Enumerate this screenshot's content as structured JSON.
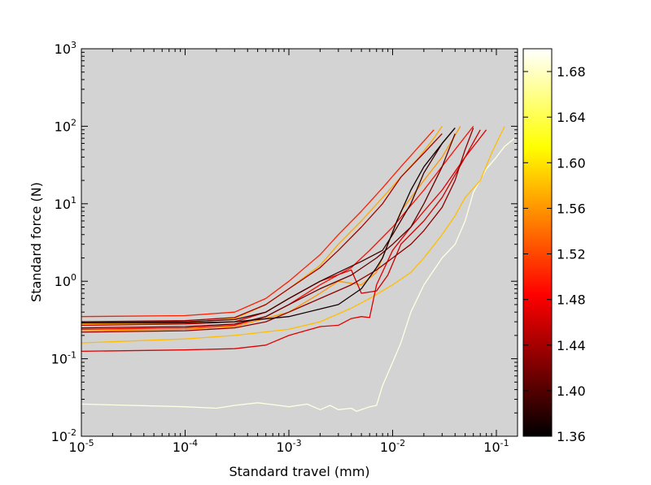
{
  "chart_data": {
    "type": "line",
    "title": "",
    "xlabel": "Standard travel (mm)",
    "ylabel": "Standard force (N)",
    "xscale": "log",
    "yscale": "log",
    "xlim": [
      1e-05,
      0.16
    ],
    "ylim": [
      0.01,
      1000
    ],
    "background": "#d3d3d3",
    "x_ticks": [
      {
        "value": 1e-05,
        "mant": "10",
        "exp": "-5"
      },
      {
        "value": 0.0001,
        "mant": "10",
        "exp": "-4"
      },
      {
        "value": 0.001,
        "mant": "10",
        "exp": "-3"
      },
      {
        "value": 0.01,
        "mant": "10",
        "exp": "-2"
      },
      {
        "value": 0.1,
        "mant": "10",
        "exp": "-1"
      }
    ],
    "y_ticks": [
      {
        "value": 0.01,
        "mant": "10",
        "exp": "-2"
      },
      {
        "value": 0.1,
        "mant": "10",
        "exp": "-1"
      },
      {
        "value": 1,
        "mant": "10",
        "exp": "0"
      },
      {
        "value": 10,
        "mant": "10",
        "exp": "1"
      },
      {
        "value": 100,
        "mant": "10",
        "exp": "2"
      },
      {
        "value": 1000,
        "mant": "10",
        "exp": "3"
      }
    ],
    "colorbar": {
      "colormap": "hot",
      "range": [
        1.36,
        1.7
      ],
      "ticks": [
        "1.36",
        "1.40",
        "1.44",
        "1.48",
        "1.52",
        "1.56",
        "1.60",
        "1.64",
        "1.68"
      ]
    },
    "series": [
      {
        "color_value": 1.69,
        "points": [
          [
            1e-05,
            0.026
          ],
          [
            0.0001,
            0.024
          ],
          [
            0.0002,
            0.023
          ],
          [
            0.0003,
            0.025
          ],
          [
            0.0005,
            0.027
          ],
          [
            0.0008,
            0.025
          ],
          [
            0.001,
            0.024
          ],
          [
            0.0015,
            0.026
          ],
          [
            0.002,
            0.022
          ],
          [
            0.0025,
            0.025
          ],
          [
            0.003,
            0.022
          ],
          [
            0.004,
            0.023
          ],
          [
            0.0045,
            0.021
          ],
          [
            0.005,
            0.022
          ],
          [
            0.006,
            0.024
          ],
          [
            0.007,
            0.025
          ],
          [
            0.008,
            0.045
          ],
          [
            0.01,
            0.09
          ],
          [
            0.012,
            0.16
          ],
          [
            0.015,
            0.4
          ],
          [
            0.02,
            0.9
          ],
          [
            0.03,
            2.0
          ],
          [
            0.04,
            3.0
          ],
          [
            0.05,
            6.0
          ],
          [
            0.06,
            14.0
          ],
          [
            0.08,
            28.0
          ],
          [
            0.1,
            40.0
          ],
          [
            0.12,
            55.0
          ],
          [
            0.15,
            70.0
          ]
        ]
      },
      {
        "color_value": 1.58,
        "points": [
          [
            1e-05,
            0.16
          ],
          [
            0.0001,
            0.18
          ],
          [
            0.0003,
            0.2
          ],
          [
            0.001,
            0.24
          ],
          [
            0.002,
            0.3
          ],
          [
            0.004,
            0.45
          ],
          [
            0.006,
            0.6
          ],
          [
            0.01,
            0.9
          ],
          [
            0.015,
            1.3
          ],
          [
            0.02,
            2.0
          ],
          [
            0.03,
            4.0
          ],
          [
            0.04,
            7.0
          ],
          [
            0.05,
            12.0
          ],
          [
            0.07,
            20.0
          ],
          [
            0.09,
            45.0
          ],
          [
            0.12,
            100.0
          ]
        ]
      },
      {
        "color_value": 1.57,
        "points": [
          [
            1e-05,
            0.28
          ],
          [
            0.0001,
            0.29
          ],
          [
            0.0003,
            0.33
          ],
          [
            0.0006,
            0.5
          ],
          [
            0.001,
            0.8
          ],
          [
            0.002,
            1.6
          ],
          [
            0.003,
            3.0
          ],
          [
            0.005,
            6.0
          ],
          [
            0.008,
            12.0
          ],
          [
            0.012,
            22.0
          ],
          [
            0.018,
            40.0
          ],
          [
            0.025,
            70.0
          ],
          [
            0.03,
            100.0
          ]
        ]
      },
      {
        "color_value": 1.56,
        "points": [
          [
            1e-05,
            0.23
          ],
          [
            0.0001,
            0.24
          ],
          [
            0.0003,
            0.26
          ],
          [
            0.001,
            0.4
          ],
          [
            0.002,
            0.7
          ],
          [
            0.003,
            1.0
          ],
          [
            0.005,
            0.9
          ],
          [
            0.007,
            1.3
          ],
          [
            0.009,
            3.0
          ],
          [
            0.012,
            8.0
          ],
          [
            0.02,
            20.0
          ],
          [
            0.03,
            40.0
          ],
          [
            0.045,
            100.0
          ]
        ]
      },
      {
        "color_value": 1.5,
        "points": [
          [
            1e-05,
            0.35
          ],
          [
            0.0001,
            0.36
          ],
          [
            0.0003,
            0.4
          ],
          [
            0.0006,
            0.6
          ],
          [
            0.001,
            1.0
          ],
          [
            0.002,
            2.2
          ],
          [
            0.003,
            4.0
          ],
          [
            0.005,
            8.0
          ],
          [
            0.008,
            16.0
          ],
          [
            0.012,
            30.0
          ],
          [
            0.018,
            55.0
          ],
          [
            0.025,
            90.0
          ]
        ]
      },
      {
        "color_value": 1.49,
        "points": [
          [
            1e-05,
            0.24
          ],
          [
            0.0001,
            0.25
          ],
          [
            0.0003,
            0.27
          ],
          [
            0.0006,
            0.35
          ],
          [
            0.001,
            0.5
          ],
          [
            0.002,
            0.9
          ],
          [
            0.004,
            1.5
          ],
          [
            0.006,
            2.5
          ],
          [
            0.01,
            5.0
          ],
          [
            0.02,
            15.0
          ],
          [
            0.04,
            50.0
          ],
          [
            0.06,
            100.0
          ]
        ]
      },
      {
        "color_value": 1.47,
        "points": [
          [
            1e-05,
            0.125
          ],
          [
            0.0001,
            0.13
          ],
          [
            0.0003,
            0.135
          ],
          [
            0.0006,
            0.15
          ],
          [
            0.001,
            0.2
          ],
          [
            0.002,
            0.26
          ],
          [
            0.003,
            0.27
          ],
          [
            0.004,
            0.33
          ],
          [
            0.005,
            0.35
          ],
          [
            0.006,
            0.34
          ],
          [
            0.007,
            0.9
          ],
          [
            0.01,
            2.5
          ],
          [
            0.015,
            5.0
          ],
          [
            0.02,
            8.0
          ],
          [
            0.03,
            15.0
          ],
          [
            0.05,
            40.0
          ],
          [
            0.08,
            90.0
          ]
        ]
      },
      {
        "color_value": 1.46,
        "points": [
          [
            1e-05,
            0.27
          ],
          [
            0.0001,
            0.28
          ],
          [
            0.0003,
            0.3
          ],
          [
            0.0006,
            0.4
          ],
          [
            0.001,
            0.6
          ],
          [
            0.002,
            1.0
          ],
          [
            0.004,
            1.4
          ],
          [
            0.005,
            0.7
          ],
          [
            0.007,
            0.75
          ],
          [
            0.009,
            1.2
          ],
          [
            0.012,
            3.0
          ],
          [
            0.02,
            6.0
          ],
          [
            0.03,
            12.0
          ],
          [
            0.05,
            40.0
          ],
          [
            0.07,
            90.0
          ]
        ]
      },
      {
        "color_value": 1.44,
        "points": [
          [
            1e-05,
            0.3
          ],
          [
            0.0001,
            0.31
          ],
          [
            0.0003,
            0.34
          ],
          [
            0.0006,
            0.5
          ],
          [
            0.001,
            0.8
          ],
          [
            0.002,
            1.5
          ],
          [
            0.003,
            2.5
          ],
          [
            0.005,
            5.0
          ],
          [
            0.008,
            10.0
          ],
          [
            0.012,
            22.0
          ],
          [
            0.02,
            45.0
          ],
          [
            0.03,
            80.0
          ]
        ]
      },
      {
        "color_value": 1.43,
        "points": [
          [
            1e-05,
            0.22
          ],
          [
            0.0001,
            0.23
          ],
          [
            0.0003,
            0.25
          ],
          [
            0.0006,
            0.3
          ],
          [
            0.001,
            0.4
          ],
          [
            0.002,
            0.6
          ],
          [
            0.004,
            0.9
          ],
          [
            0.007,
            1.4
          ],
          [
            0.01,
            2.0
          ],
          [
            0.015,
            3.0
          ],
          [
            0.02,
            4.5
          ],
          [
            0.03,
            9.0
          ],
          [
            0.04,
            20.0
          ],
          [
            0.05,
            50.0
          ],
          [
            0.06,
            95.0
          ]
        ]
      },
      {
        "color_value": 1.41,
        "points": [
          [
            1e-05,
            0.25
          ],
          [
            0.0001,
            0.26
          ],
          [
            0.0003,
            0.28
          ],
          [
            0.0006,
            0.35
          ],
          [
            0.001,
            0.5
          ],
          [
            0.002,
            0.8
          ],
          [
            0.004,
            1.2
          ],
          [
            0.007,
            2.0
          ],
          [
            0.01,
            3.0
          ],
          [
            0.015,
            5.0
          ],
          [
            0.02,
            10.0
          ],
          [
            0.03,
            30.0
          ],
          [
            0.04,
            80.0
          ]
        ]
      },
      {
        "color_value": 1.39,
        "points": [
          [
            1e-05,
            0.3
          ],
          [
            0.0001,
            0.3
          ],
          [
            0.0003,
            0.32
          ],
          [
            0.0006,
            0.4
          ],
          [
            0.001,
            0.6
          ],
          [
            0.002,
            1.0
          ],
          [
            0.003,
            1.3
          ],
          [
            0.005,
            1.8
          ],
          [
            0.008,
            2.5
          ],
          [
            0.01,
            4.0
          ],
          [
            0.015,
            10.0
          ],
          [
            0.02,
            25.0
          ],
          [
            0.03,
            60.0
          ],
          [
            0.04,
            95.0
          ]
        ]
      },
      {
        "color_value": 1.37,
        "points": [
          [
            1e-05,
            0.29
          ],
          [
            0.0001,
            0.29
          ],
          [
            0.0003,
            0.3
          ],
          [
            0.001,
            0.35
          ],
          [
            0.003,
            0.5
          ],
          [
            0.005,
            0.8
          ],
          [
            0.007,
            1.5
          ],
          [
            0.008,
            2.0
          ],
          [
            0.009,
            3.0
          ],
          [
            0.011,
            6.0
          ],
          [
            0.015,
            15.0
          ],
          [
            0.02,
            30.0
          ],
          [
            0.03,
            60.0
          ],
          [
            0.04,
            95.0
          ]
        ]
      }
    ]
  }
}
